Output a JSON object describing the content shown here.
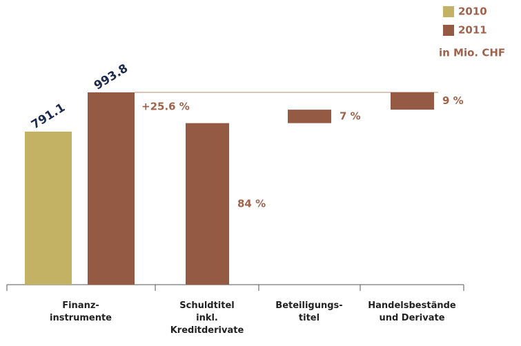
{
  "chart_data": {
    "type": "waterfall",
    "unit_label": "in Mio. CHF",
    "categories": [
      [
        "Finanz-",
        "instrumente"
      ],
      [
        "Schuldtitel",
        "inkl.",
        "Kreditderivate"
      ],
      [
        "Beteiligungs-",
        "titel"
      ],
      [
        "Handelsbestände",
        "und Derivate"
      ]
    ],
    "series": [
      {
        "name": "2010",
        "color": "#c3b164",
        "values": [
          791.1,
          null,
          null,
          null
        ]
      },
      {
        "name": "2011",
        "color": "#955a43",
        "values": [
          993.8,
          null,
          null,
          null
        ]
      }
    ],
    "breakdown": {
      "color": "#955a43",
      "label_color": "#a0624a",
      "values": [
        null,
        84,
        7,
        9
      ],
      "value_labels": [
        null,
        "84 %",
        "7 %",
        "9 %"
      ]
    },
    "annotation": "+25.6 %",
    "value_label_color": "#1b2a4e"
  }
}
